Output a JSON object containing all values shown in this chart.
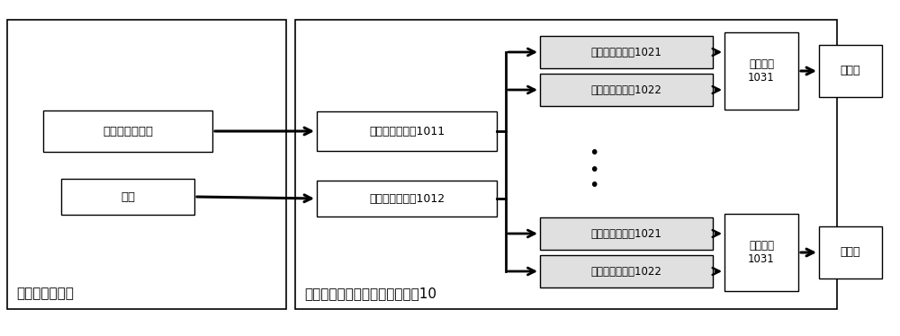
{
  "bg_color": "#ffffff",
  "label_upper_left": "上位机控制系统",
  "label_lower_main": "适用于半导体多并联的驱动电路10",
  "box_driver_gen": "驱动信号发生器",
  "box_power": "电源",
  "box_main_sig": "主信号隔离单兴1011",
  "box_main_pwr": "主功率隔离单兴1012",
  "box_slave_sig_1021": "从信号隔离单兴1021",
  "box_slave_sig_1022": "从信号隔离单兴1022",
  "box_drive_1031": "驱动单元\n1031",
  "box_semi": "半导体",
  "font_size_label": 11,
  "font_size_box": 9.5,
  "font_size_small": 8.8
}
